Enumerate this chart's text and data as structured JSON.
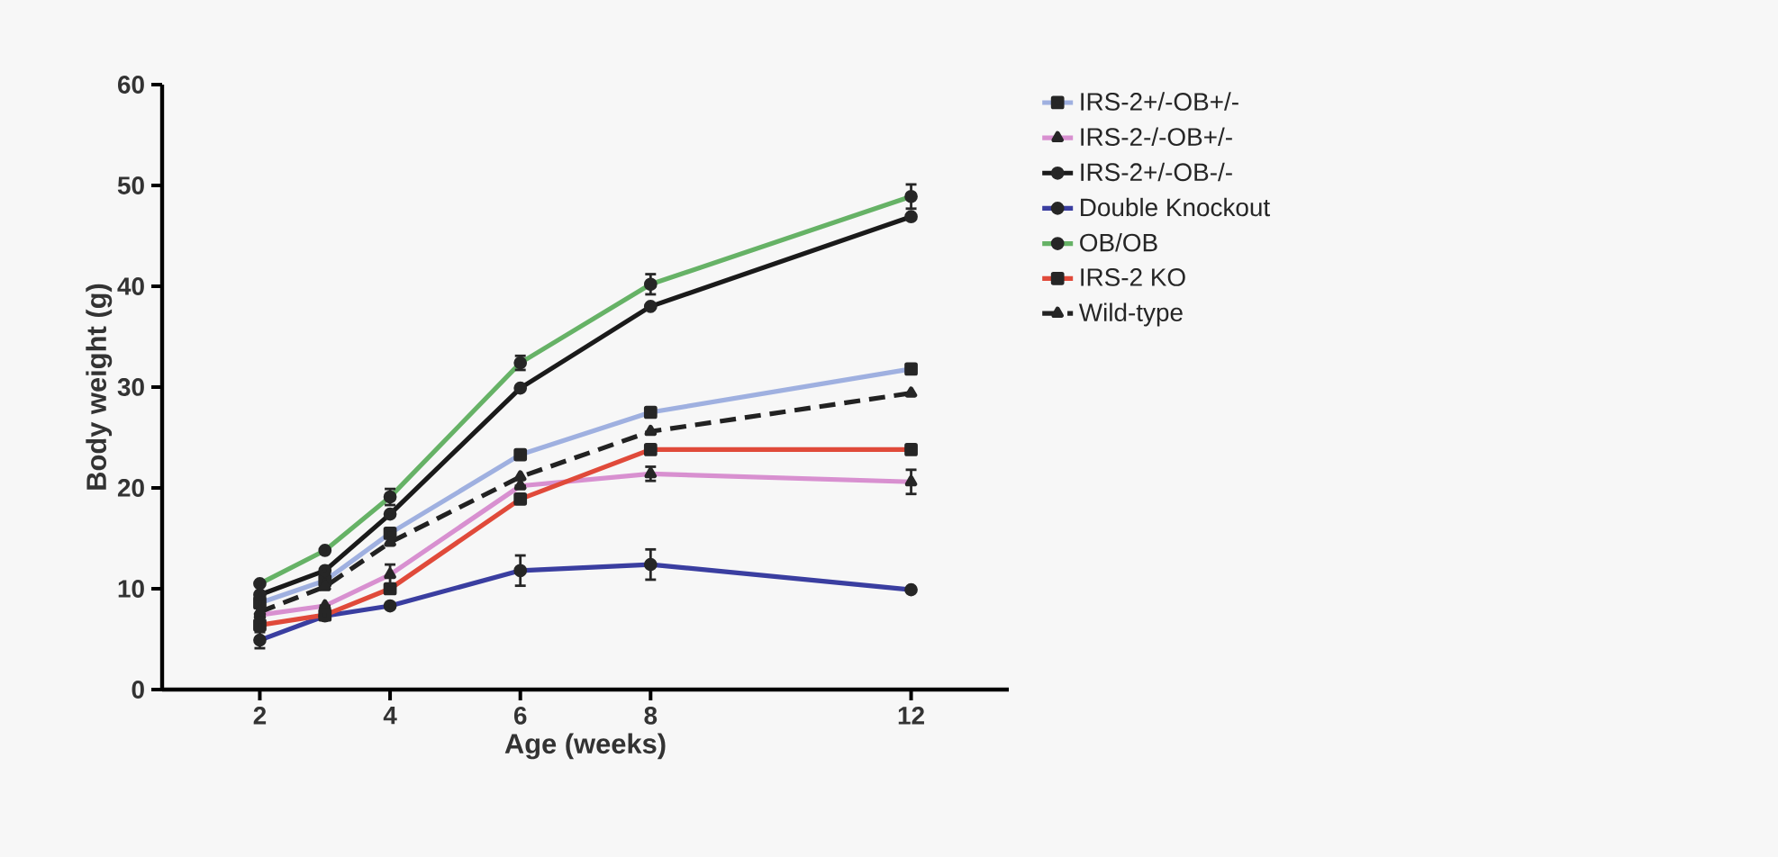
{
  "chart_data": {
    "type": "line",
    "xlabel": "Age (weeks)",
    "ylabel": "Body weight (g)",
    "x": [
      2,
      3,
      4,
      6,
      8,
      12
    ],
    "xlim": [
      0.5,
      13.5
    ],
    "xticks": [
      2,
      4,
      6,
      8,
      12
    ],
    "ylim": [
      0,
      60
    ],
    "yticks": [
      0,
      10,
      20,
      30,
      40,
      50,
      60
    ],
    "grid": false,
    "legend": "right",
    "series": [
      {
        "name": "IRS-2+/-OB+/-",
        "color": "#9fb0e0",
        "marker": "square",
        "line_style": "solid",
        "values": [
          8.6,
          10.8,
          15.5,
          23.3,
          27.5,
          31.8
        ]
      },
      {
        "name": "IRS-2-/-OB+/-",
        "color": "#d890d0",
        "marker": "triangle",
        "line_style": "solid",
        "values": [
          7.4,
          8.3,
          11.4,
          20.2,
          21.4,
          20.6
        ],
        "errors": [
          null,
          null,
          1,
          null,
          0.7,
          1.2
        ]
      },
      {
        "name": "IRS-2+/-OB-/-",
        "color": "#1a1a1a",
        "marker": "circle",
        "line_style": "solid",
        "values": [
          9.4,
          11.8,
          17.4,
          29.9,
          38,
          46.9
        ]
      },
      {
        "name": "Double Knockout",
        "color": "#3a3ea0",
        "marker": "circle",
        "line_style": "solid",
        "values": [
          4.9,
          7.3,
          8.3,
          11.8,
          12.4,
          9.9
        ],
        "errors": [
          0.8,
          null,
          null,
          1.5,
          1.5,
          null
        ]
      },
      {
        "name": "OB/OB",
        "color": "#66b266",
        "marker": "circle",
        "line_style": "solid",
        "values": [
          10.5,
          13.8,
          19.1,
          32.4,
          40.2,
          48.9
        ],
        "errors": [
          null,
          null,
          0.8,
          0.7,
          1,
          1.2
        ]
      },
      {
        "name": "IRS-2 KO",
        "color": "#e04a3a",
        "marker": "square",
        "line_style": "solid",
        "values": [
          6.4,
          7.4,
          10,
          18.9,
          23.8,
          23.8
        ]
      },
      {
        "name": "Wild-type",
        "color": "#222222",
        "marker": "triangle",
        "line_style": "dashed",
        "values": [
          7.7,
          10.2,
          14.6,
          21.1,
          25.6,
          29.4
        ]
      }
    ]
  }
}
